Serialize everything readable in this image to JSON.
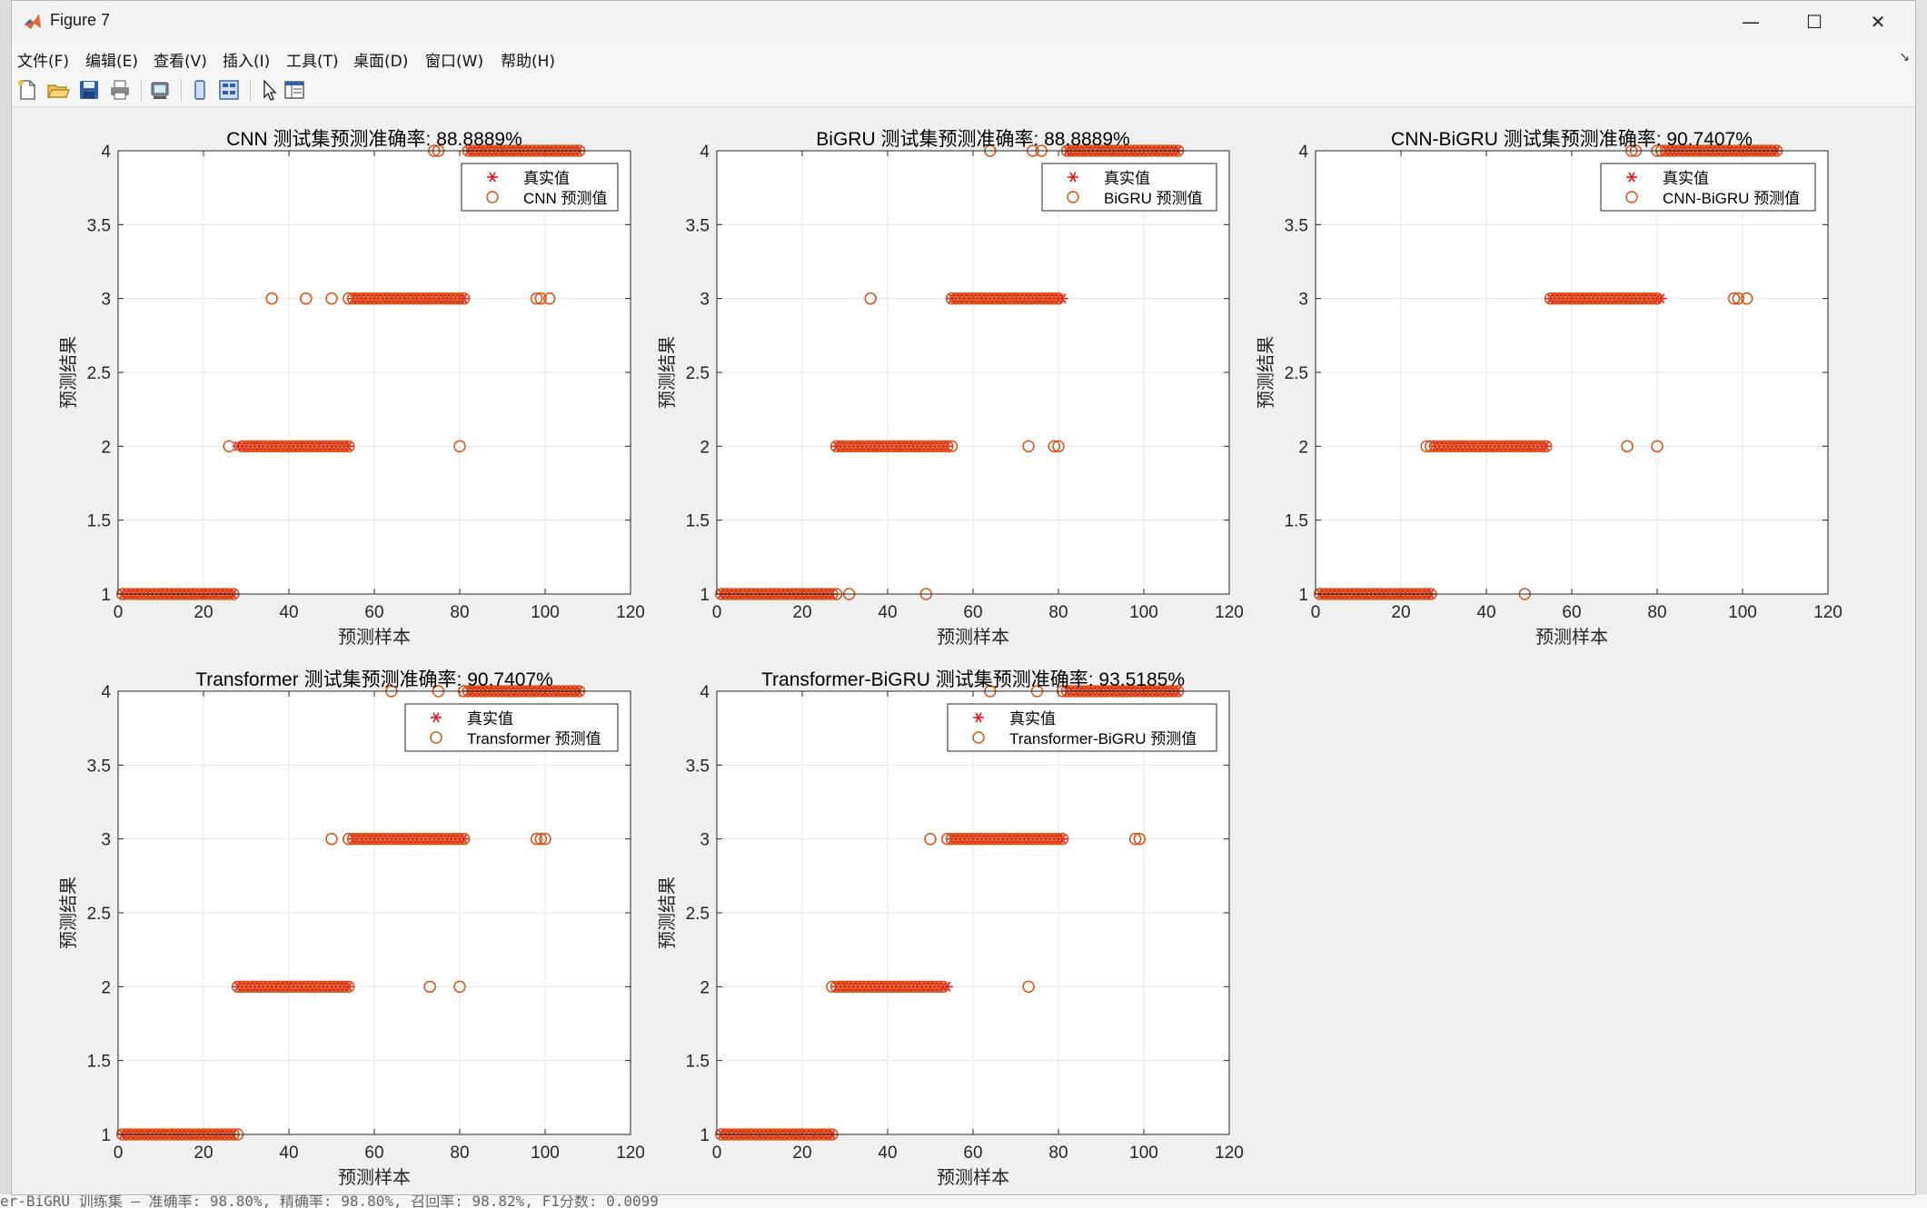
{
  "window": {
    "title": "Figure 7",
    "minimize_glyph": "—",
    "maximize_glyph": "☐",
    "close_glyph": "✕",
    "logo_icon": "matlab-logo-icon"
  },
  "menu": [
    "文件(F)",
    "编辑(E)",
    "查看(V)",
    "插入(I)",
    "工具(T)",
    "桌面(D)",
    "窗口(W)",
    "帮助(H)"
  ],
  "menu_overflow_glyph": "↘",
  "toolbar_icons": [
    "new-figure-icon",
    "open-file-icon",
    "save-icon",
    "print-icon",
    "print-preview-icon",
    "link-plot-icon",
    "insert-colorbar-icon",
    "edit-plot-arrow-icon",
    "property-editor-icon"
  ],
  "background_text": "er-BiGRU 训练集 — 准确率: 98.80%, 精确率: 98.80%, 召回率: 98.82%, F1分数: 0.0099",
  "colors": {
    "true_marker": "#e8151b",
    "pred_marker": "#d95319",
    "axes_bg": "#ffffff",
    "grid": "#e6e6e6",
    "figure_bg": "#f0f0f0"
  },
  "chart_data": [
    {
      "type": "scatter",
      "title": "CNN 测试集预测准确率: 88.8889%",
      "xlabel": "预测样本",
      "ylabel": "预测结果",
      "xlim": [
        0,
        120
      ],
      "ylim": [
        1,
        4
      ],
      "xticks": [
        "0",
        "20",
        "40",
        "60",
        "80",
        "100",
        "120"
      ],
      "yticks": [
        "1",
        "1.5",
        "2",
        "2.5",
        "3",
        "3.5",
        "4"
      ],
      "grid": true,
      "legend_position": "top-right",
      "true_label": "真实值",
      "pred_label": "CNN 预测值",
      "true_segments": [
        {
          "y": 1,
          "from": 1,
          "to": 27
        },
        {
          "y": 2,
          "from": 28,
          "to": 54
        },
        {
          "y": 3,
          "from": 55,
          "to": 81
        },
        {
          "y": 4,
          "from": 82,
          "to": 108
        }
      ],
      "pred_segments": [
        {
          "y": 1,
          "from": 1,
          "to": 27
        },
        {
          "y": 2,
          "from": 29,
          "to": 54
        },
        {
          "y": 3,
          "from": 54,
          "to": 81
        },
        {
          "y": 4,
          "from": 82,
          "to": 108
        }
      ],
      "pred_extra": [
        [
          26,
          2
        ],
        [
          36,
          3
        ],
        [
          44,
          3
        ],
        [
          50,
          3
        ],
        [
          74,
          4
        ],
        [
          75,
          4
        ],
        [
          80,
          2
        ],
        [
          98,
          3
        ],
        [
          99,
          3
        ],
        [
          101,
          3
        ]
      ]
    },
    {
      "type": "scatter",
      "title": "BiGRU 测试集预测准确率: 88.8889%",
      "xlabel": "预测样本",
      "ylabel": "预测结果",
      "xlim": [
        0,
        120
      ],
      "ylim": [
        1,
        4
      ],
      "xticks": [
        "0",
        "20",
        "40",
        "60",
        "80",
        "100",
        "120"
      ],
      "yticks": [
        "1",
        "1.5",
        "2",
        "2.5",
        "3",
        "3.5",
        "4"
      ],
      "grid": true,
      "legend_position": "top-right",
      "true_label": "真实值",
      "pred_label": "BiGRU 预测值",
      "true_segments": [
        {
          "y": 1,
          "from": 1,
          "to": 27
        },
        {
          "y": 2,
          "from": 28,
          "to": 54
        },
        {
          "y": 3,
          "from": 55,
          "to": 81
        },
        {
          "y": 4,
          "from": 82,
          "to": 108
        }
      ],
      "pred_segments": [
        {
          "y": 1,
          "from": 1,
          "to": 28
        },
        {
          "y": 2,
          "from": 28,
          "to": 55
        },
        {
          "y": 3,
          "from": 55,
          "to": 80
        },
        {
          "y": 4,
          "from": 82,
          "to": 108
        }
      ],
      "pred_extra": [
        [
          31,
          1
        ],
        [
          36,
          3
        ],
        [
          49,
          1
        ],
        [
          64,
          4
        ],
        [
          73,
          2
        ],
        [
          74,
          4
        ],
        [
          76,
          4
        ],
        [
          79,
          2
        ],
        [
          80,
          2
        ]
      ]
    },
    {
      "type": "scatter",
      "title": "CNN-BiGRU 测试集预测准确率: 90.7407%",
      "xlabel": "预测样本",
      "ylabel": "预测结果",
      "xlim": [
        0,
        120
      ],
      "ylim": [
        1,
        4
      ],
      "xticks": [
        "0",
        "20",
        "40",
        "60",
        "80",
        "100",
        "120"
      ],
      "yticks": [
        "1",
        "1.5",
        "2",
        "2.5",
        "3",
        "3.5",
        "4"
      ],
      "grid": true,
      "legend_position": "top-right",
      "true_label": "真实值",
      "pred_label": "CNN-BiGRU 预测值",
      "true_segments": [
        {
          "y": 1,
          "from": 1,
          "to": 27
        },
        {
          "y": 2,
          "from": 28,
          "to": 54
        },
        {
          "y": 3,
          "from": 55,
          "to": 81
        },
        {
          "y": 4,
          "from": 82,
          "to": 108
        }
      ],
      "pred_segments": [
        {
          "y": 1,
          "from": 1,
          "to": 27
        },
        {
          "y": 2,
          "from": 27,
          "to": 54
        },
        {
          "y": 3,
          "from": 55,
          "to": 80
        },
        {
          "y": 4,
          "from": 80,
          "to": 108
        }
      ],
      "pred_extra": [
        [
          26,
          2
        ],
        [
          49,
          1
        ],
        [
          73,
          2
        ],
        [
          74,
          4
        ],
        [
          75,
          4
        ],
        [
          80,
          2
        ],
        [
          98,
          3
        ],
        [
          99,
          3
        ],
        [
          101,
          3
        ]
      ]
    },
    {
      "type": "scatter",
      "title": "Transformer 测试集预测准确率: 90.7407%",
      "xlabel": "预测样本",
      "ylabel": "预测结果",
      "xlim": [
        0,
        120
      ],
      "ylim": [
        1,
        4
      ],
      "xticks": [
        "0",
        "20",
        "40",
        "60",
        "80",
        "100",
        "120"
      ],
      "yticks": [
        "1",
        "1.5",
        "2",
        "2.5",
        "3",
        "3.5",
        "4"
      ],
      "grid": true,
      "legend_position": "top-right",
      "true_label": "真实值",
      "pred_label": "Transformer 预测值",
      "true_segments": [
        {
          "y": 1,
          "from": 1,
          "to": 27
        },
        {
          "y": 2,
          "from": 28,
          "to": 54
        },
        {
          "y": 3,
          "from": 55,
          "to": 81
        },
        {
          "y": 4,
          "from": 82,
          "to": 108
        }
      ],
      "pred_segments": [
        {
          "y": 1,
          "from": 1,
          "to": 28
        },
        {
          "y": 2,
          "from": 28,
          "to": 54
        },
        {
          "y": 3,
          "from": 54,
          "to": 81
        },
        {
          "y": 4,
          "from": 81,
          "to": 108
        }
      ],
      "pred_extra": [
        [
          50,
          3
        ],
        [
          64,
          4
        ],
        [
          75,
          4
        ],
        [
          73,
          2
        ],
        [
          80,
          2
        ],
        [
          98,
          3
        ],
        [
          99,
          3
        ],
        [
          100,
          3
        ]
      ]
    },
    {
      "type": "scatter",
      "title": "Transformer-BiGRU 测试集预测准确率: 93.5185%",
      "xlabel": "预测样本",
      "ylabel": "预测结果",
      "xlim": [
        0,
        120
      ],
      "ylim": [
        1,
        4
      ],
      "xticks": [
        "0",
        "20",
        "40",
        "60",
        "80",
        "100",
        "120"
      ],
      "yticks": [
        "1",
        "1.5",
        "2",
        "2.5",
        "3",
        "3.5",
        "4"
      ],
      "grid": true,
      "legend_position": "top-right",
      "true_label": "真实值",
      "pred_label": "Transformer-BiGRU 预测值",
      "true_segments": [
        {
          "y": 1,
          "from": 1,
          "to": 27
        },
        {
          "y": 2,
          "from": 28,
          "to": 54
        },
        {
          "y": 3,
          "from": 55,
          "to": 81
        },
        {
          "y": 4,
          "from": 82,
          "to": 108
        }
      ],
      "pred_segments": [
        {
          "y": 1,
          "from": 1,
          "to": 27
        },
        {
          "y": 2,
          "from": 27,
          "to": 53
        },
        {
          "y": 3,
          "from": 54,
          "to": 81
        },
        {
          "y": 4,
          "from": 81,
          "to": 108
        }
      ],
      "pred_extra": [
        [
          50,
          3
        ],
        [
          64,
          4
        ],
        [
          73,
          2
        ],
        [
          75,
          4
        ],
        [
          98,
          3
        ],
        [
          99,
          3
        ]
      ]
    }
  ]
}
